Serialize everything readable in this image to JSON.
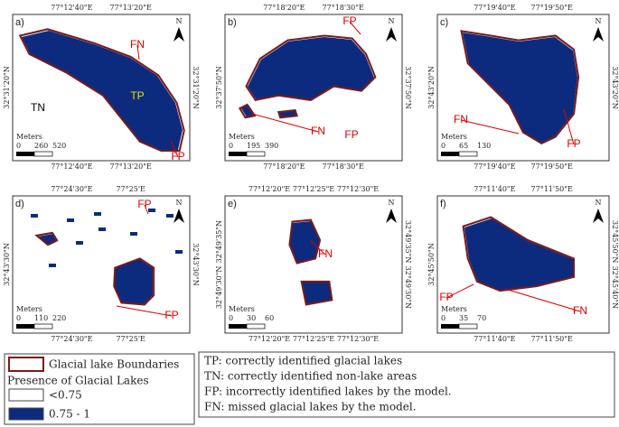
{
  "panels": [
    {
      "label": "a)",
      "top_ticks": [
        "77°12'40\"E",
        "77°13'20\"E"
      ],
      "bottom_ticks": [
        "77°12'40\"E",
        "77°13'20\"E"
      ],
      "left_ticks": [
        "32°31'20\"N"
      ],
      "right_ticks": [
        "32°31'20\"N"
      ],
      "annotations": [
        "FN",
        "TP",
        "TN",
        "FP"
      ],
      "scale_title": "Meters",
      "scale_ticks": [
        "0",
        "260",
        "520"
      ],
      "north": "N"
    },
    {
      "label": "b)",
      "top_ticks": [
        "77°18'20\"E",
        "77°18'30\"E"
      ],
      "bottom_ticks": [
        "77°18'20\"E",
        "77°18'30\"E"
      ],
      "left_ticks": [
        "32°37'50\"N"
      ],
      "right_ticks": [
        "32°37'50\"N"
      ],
      "annotations": [
        "FP",
        "FN",
        "FP"
      ],
      "scale_title": "Meters",
      "scale_ticks": [
        "0",
        "195",
        "390"
      ],
      "north": "N"
    },
    {
      "label": "c)",
      "top_ticks": [
        "77°19'40\"E",
        "77°19'50\"E"
      ],
      "bottom_ticks": [
        "77°19'40\"E",
        "77°19'50\"E"
      ],
      "left_ticks": [
        "32°43'20\"N"
      ],
      "right_ticks": [
        "32°43'20\"N"
      ],
      "annotations": [
        "FN",
        "FP"
      ],
      "scale_title": "Meters",
      "scale_ticks": [
        "0",
        "65",
        "130"
      ],
      "north": "N"
    },
    {
      "label": "d)",
      "top_ticks": [
        "77°24'30\"E",
        "77°25'E"
      ],
      "bottom_ticks": [
        "77°24'30\"E",
        "77°25'E"
      ],
      "left_ticks": [
        "32°43'30\"N"
      ],
      "right_ticks": [
        "32°43'30\"N"
      ],
      "annotations": [
        "FP",
        "FP"
      ],
      "scale_title": "Meters",
      "scale_ticks": [
        "0",
        "110",
        "220"
      ],
      "north": "N"
    },
    {
      "label": "e)",
      "top_ticks": [
        "77°12'20\"E",
        "77°12'25\"E",
        "77°12'30\"E"
      ],
      "bottom_ticks": [
        "77°12'20\"E",
        "77°12'25\"E",
        "77°12'30\"E"
      ],
      "left_ticks": [
        "32°49'35\"N",
        "32°49'30\"N"
      ],
      "right_ticks": [
        "32°49'35\"N",
        "32°49'30\"N"
      ],
      "annotations": [
        "FN"
      ],
      "scale_title": "Meters",
      "scale_ticks": [
        "0",
        "30",
        "60"
      ],
      "north": "N"
    },
    {
      "label": "f)",
      "top_ticks": [
        "77°11'40\"E",
        "77°11'50\"E"
      ],
      "bottom_ticks": [
        "77°11'40\"E",
        "77°11'50\"E"
      ],
      "left_ticks": [
        "32°45'50\"N"
      ],
      "right_ticks": [
        "32°45'50\"N",
        "32°45'40\"N"
      ],
      "annotations": [
        "FP",
        "FN"
      ],
      "scale_title": "Meters",
      "scale_ticks": [
        "0",
        "35",
        "70"
      ],
      "north": "N"
    }
  ],
  "legend": {
    "boundary": "Glacial lake Boundaries",
    "presence_title": "Presence of Glacial Lakes",
    "low": "<0.75",
    "high": "0.75 - 1"
  },
  "key": [
    "TP: correctly identified glacial lakes",
    "TN: correctly identified non-lake areas",
    "FP: incorrectly identified lakes by the model.",
    "FN: missed glacial lakes by the model."
  ]
}
